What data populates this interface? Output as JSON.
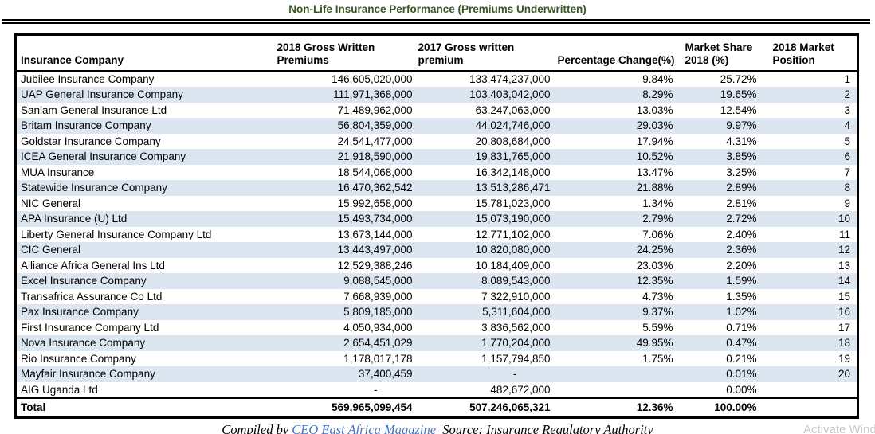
{
  "title": {
    "text": "Non-Life Insurance Performance (Premiums Underwritten)"
  },
  "colors": {
    "title_green": "#385723",
    "row_band_blue": "#dce6f1",
    "border_black": "#000000",
    "link_blue": "#4472c4",
    "watermark_gray": "#c9c9c9"
  },
  "table": {
    "columns": [
      {
        "key": "company",
        "lines": [
          "Insurance Company"
        ]
      },
      {
        "key": "gwp-2018",
        "lines": [
          "2018 Gross Written",
          "Premiums"
        ]
      },
      {
        "key": "gwp-2017",
        "lines": [
          "2017 Gross written",
          "premium"
        ]
      },
      {
        "key": "pct-change",
        "lines": [
          "Percentage Change(%)"
        ]
      },
      {
        "key": "market-share",
        "lines": [
          "Market Share",
          "2018 (%)"
        ]
      },
      {
        "key": "position",
        "lines": [
          "2018 Market",
          "Position"
        ]
      }
    ],
    "rows": [
      [
        "Jubilee Insurance Company",
        "146,605,020,000",
        "133,474,237,000",
        "9.84%",
        "25.72%",
        "1"
      ],
      [
        "UAP General Insurance Company",
        "111,971,368,000",
        "103,403,042,000",
        "8.29%",
        "19.65%",
        "2"
      ],
      [
        "Sanlam General Insurance Ltd",
        "71,489,962,000",
        "63,247,063,000",
        "13.03%",
        "12.54%",
        "3"
      ],
      [
        "Britam Insurance Company",
        "56,804,359,000",
        "44,024,746,000",
        "29.03%",
        "9.97%",
        "4"
      ],
      [
        "Goldstar Insurance Company",
        "24,541,477,000",
        "20,808,684,000",
        "17.94%",
        "4.31%",
        "5"
      ],
      [
        "ICEA General Insurance Company",
        "21,918,590,000",
        "19,831,765,000",
        "10.52%",
        "3.85%",
        "6"
      ],
      [
        "MUA Insurance",
        "18,544,068,000",
        "16,342,148,000",
        "13.47%",
        "3.25%",
        "7"
      ],
      [
        "Statewide Insurance Company",
        "16,470,362,542",
        "13,513,286,471",
        "21.88%",
        "2.89%",
        "8"
      ],
      [
        "NIC General",
        "15,992,658,000",
        "15,781,023,000",
        "1.34%",
        "2.81%",
        "9"
      ],
      [
        "APA Insurance (U) Ltd",
        "15,493,734,000",
        "15,073,190,000",
        "2.79%",
        "2.72%",
        "10"
      ],
      [
        "Liberty General Insurance Company Ltd",
        "13,673,144,000",
        "12,771,102,000",
        "7.06%",
        "2.40%",
        "11"
      ],
      [
        "CIC General",
        "13,443,497,000",
        "10,820,080,000",
        "24.25%",
        "2.36%",
        "12"
      ],
      [
        "Alliance Africa General Ins Ltd",
        "12,529,388,246",
        "10,184,409,000",
        "23.03%",
        "2.20%",
        "13"
      ],
      [
        "Excel Insurance Company",
        "9,088,545,000",
        "8,089,543,000",
        "12.35%",
        "1.59%",
        "14"
      ],
      [
        "Transafrica Assurance Co Ltd",
        "7,668,939,000",
        "7,322,910,000",
        "4.73%",
        "1.35%",
        "15"
      ],
      [
        "Pax Insurance Company",
        "5,809,185,000",
        "5,311,604,000",
        "9.37%",
        "1.02%",
        "16"
      ],
      [
        "First Insurance Company Ltd",
        "4,050,934,000",
        "3,836,562,000",
        "5.59%",
        "0.71%",
        "17"
      ],
      [
        "Nova Insurance Company",
        "2,654,451,029",
        "1,770,204,000",
        "49.95%",
        "0.47%",
        "18"
      ],
      [
        "Rio Insurance Company",
        "1,178,017,178",
        "1,157,794,850",
        "1.75%",
        "0.21%",
        "19"
      ],
      [
        "Mayfair Insurance Company",
        "37,400,459",
        "-",
        "",
        "0.01%",
        "20"
      ],
      [
        "AIG Uganda Ltd",
        "-",
        "482,672,000",
        "",
        "0.00%",
        ""
      ]
    ],
    "total": [
      "Total",
      "569,965,099,454",
      "507,246,065,321",
      "12.36%",
      "100.00%",
      ""
    ]
  },
  "footer": {
    "compiled_by": "Compiled by ",
    "link_text": "CEO East Africa Magazine",
    "source": "  Source: Insurance Regulatory Authority"
  },
  "watermark": {
    "text": "Activate Wind"
  }
}
